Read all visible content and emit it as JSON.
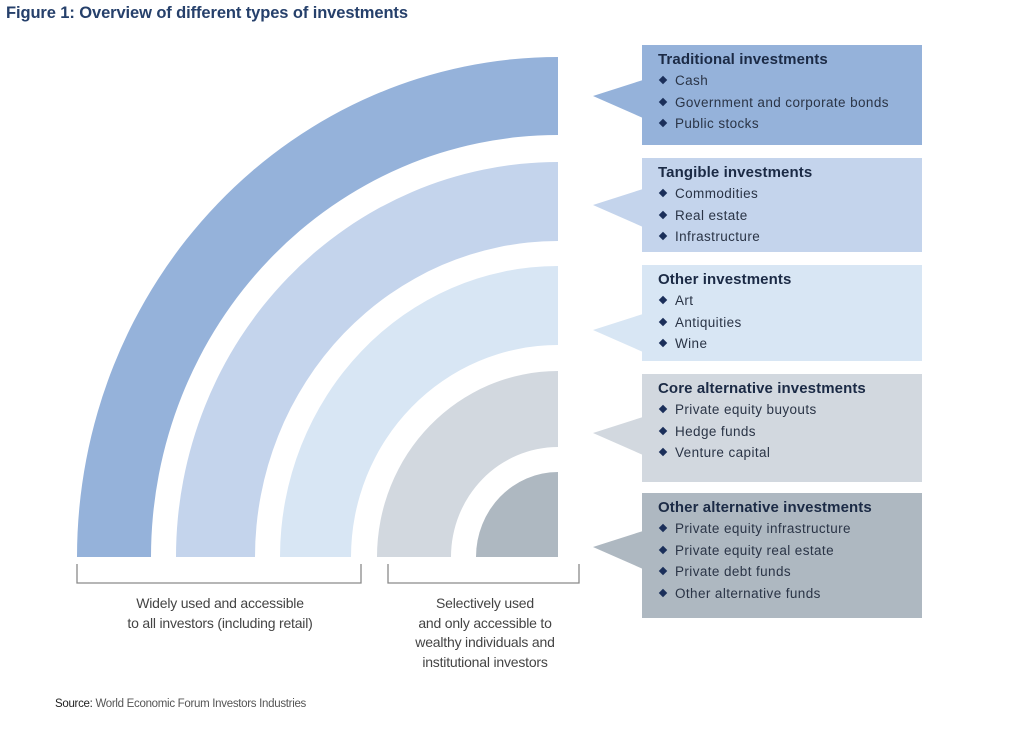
{
  "title": "Figure 1: Overview of different types of investments",
  "categories": [
    {
      "heading": "Traditional investments",
      "color": "#95b2da",
      "items": [
        "Cash",
        "Government and corporate bonds",
        "Public stocks"
      ]
    },
    {
      "heading": "Tangible investments",
      "color": "#c4d4ec",
      "items": [
        "Commodities",
        "Real estate",
        "Infrastructure"
      ]
    },
    {
      "heading": "Other investments",
      "color": "#d8e6f4",
      "items": [
        "Art",
        "Antiquities",
        "Wine"
      ]
    },
    {
      "heading": "Core alternative investments",
      "color": "#d2d8df",
      "items": [
        "Private equity buyouts",
        "Hedge funds",
        "Venture capital"
      ]
    },
    {
      "heading": "Other alternative investments",
      "color": "#aeb8c1",
      "items": [
        "Private equity infrastructure",
        "Private equity real estate",
        "Private debt funds",
        "Other alternative funds"
      ]
    }
  ],
  "groups": [
    {
      "caption_lines": [
        "Widely used and accessible",
        "to all investors (including retail)"
      ]
    },
    {
      "caption_lines": [
        "Selectively used",
        "and only accessible to",
        "wealthy individuals and",
        "institutional investors"
      ]
    }
  ],
  "source": {
    "label": "Source:",
    "text": "World Economic Forum Investors Industries"
  }
}
